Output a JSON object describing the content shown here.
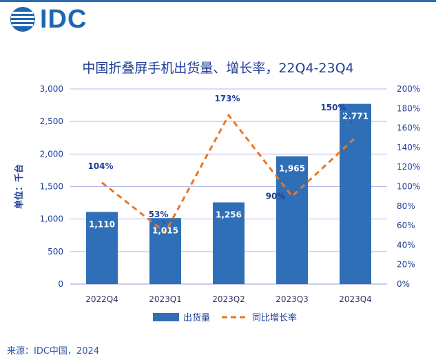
{
  "logo": {
    "text": "IDC"
  },
  "title": "中国折叠屏手机出货量、增长率，22Q4-23Q4",
  "source": "来源：IDC中国，2024",
  "colors": {
    "bar": "#2f6fb7",
    "line": "#e87722",
    "text": "#1f3e99",
    "grid": "#b9b9e8"
  },
  "chart_data": {
    "type": "bar",
    "categories": [
      "2022Q4",
      "2023Q1",
      "2023Q2",
      "2023Q3",
      "2023Q4"
    ],
    "series": [
      {
        "name": "出货量",
        "type": "bar",
        "axis": "left",
        "values": [
          1110,
          1015,
          1256,
          1965,
          2771
        ],
        "labels": [
          "1,110",
          "1,015",
          "1,256",
          "1,965",
          "2,771"
        ]
      },
      {
        "name": "同比增长率",
        "type": "line",
        "axis": "right",
        "style": "dashed",
        "values": [
          104,
          53,
          173,
          90,
          150
        ],
        "labels": [
          "104%",
          "53%",
          "173%",
          "90%",
          "150%"
        ]
      }
    ],
    "ylabel": "单位：千台",
    "ylim": [
      0,
      3000
    ],
    "yticks": [
      "0",
      "500",
      "1,000",
      "1,500",
      "2,000",
      "2,500",
      "3,000"
    ],
    "y2lim": [
      0,
      200
    ],
    "y2ticks": [
      "0%",
      "20%",
      "40%",
      "60%",
      "80%",
      "100%",
      "120%",
      "140%",
      "160%",
      "180%",
      "200%"
    ],
    "grid": true,
    "legend": "bottom"
  }
}
